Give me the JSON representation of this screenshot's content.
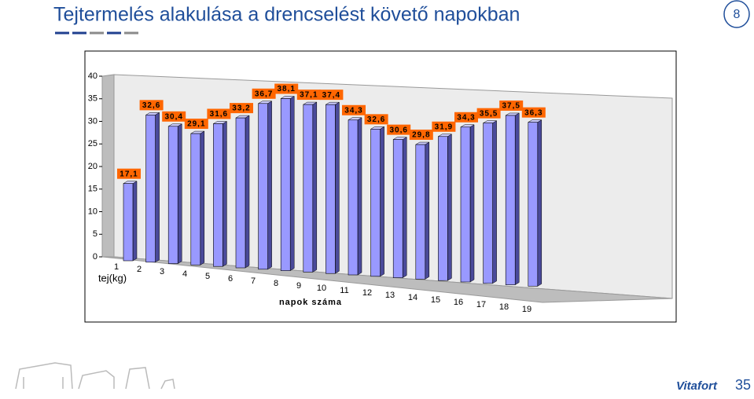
{
  "header": {
    "title": "Tejtermelés alakulása a drencselést követő napokban",
    "page_number": "8"
  },
  "chart_data": {
    "type": "bar3d",
    "categories": [
      "1",
      "2",
      "3",
      "4",
      "5",
      "6",
      "7",
      "8",
      "9",
      "10",
      "11",
      "12",
      "13",
      "14",
      "15",
      "16",
      "17",
      "18",
      "19"
    ],
    "values": [
      17.1,
      32.6,
      30.4,
      29.1,
      31.6,
      33.2,
      36.7,
      38.1,
      37.1,
      37.4,
      34.3,
      32.6,
      30.6,
      29.8,
      31.9,
      34.3,
      35.5,
      37.5,
      36.3
    ],
    "value_labels": [
      "17,1",
      "32,6",
      "30,4",
      "29,1",
      "31,6",
      "33,2",
      "36,7",
      "38,1",
      "37,1",
      "37,4",
      "34,3",
      "32,6",
      "30,6",
      "29,8",
      "31,9",
      "34,3",
      "35,5",
      "37,5",
      "36,3"
    ],
    "color": "#9999ff",
    "label_color": "#ff6600",
    "y_label": "tej(kg)",
    "x_label": "napok száma",
    "ylim": [
      0,
      40
    ],
    "yticks": [
      0,
      5,
      10,
      15,
      20,
      25,
      30,
      35,
      40
    ]
  },
  "footer": {
    "logo": "Vitafort",
    "badge": "35"
  }
}
